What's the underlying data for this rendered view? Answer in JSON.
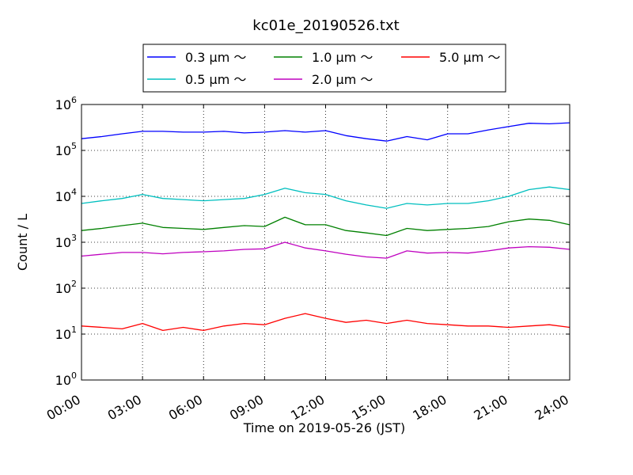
{
  "chart_data": {
    "type": "line",
    "title": "kc01e_20190526.txt",
    "xlabel": "Time on 2019-05-26 (JST)",
    "ylabel": "Count / L",
    "y_scale": "log",
    "ylim": [
      1,
      1000000
    ],
    "xlim": [
      "00:00",
      "24:00"
    ],
    "grid": true,
    "legend_placement": "top-center, above plot",
    "x_ticks": [
      "00:00",
      "03:00",
      "06:00",
      "09:00",
      "12:00",
      "15:00",
      "18:00",
      "21:00",
      "24:00"
    ],
    "y_ticks": [
      {
        "base": "10",
        "exp": "0"
      },
      {
        "base": "10",
        "exp": "1"
      },
      {
        "base": "10",
        "exp": "2"
      },
      {
        "base": "10",
        "exp": "3"
      },
      {
        "base": "10",
        "exp": "4"
      },
      {
        "base": "10",
        "exp": "5"
      },
      {
        "base": "10",
        "exp": "6"
      }
    ],
    "x_hours": [
      0,
      1,
      2,
      3,
      4,
      5,
      6,
      7,
      8,
      9,
      10,
      11,
      12,
      13,
      14,
      15,
      16,
      17,
      18,
      19,
      20,
      21,
      22,
      23,
      24
    ],
    "series": [
      {
        "name": "0.3 μm ～",
        "color": "#0000ff",
        "values": [
          180000,
          200000,
          230000,
          260000,
          260000,
          250000,
          250000,
          260000,
          240000,
          250000,
          270000,
          250000,
          270000,
          210000,
          180000,
          160000,
          200000,
          170000,
          230000,
          230000,
          280000,
          330000,
          390000,
          380000,
          400000
        ]
      },
      {
        "name": "0.5 μm ～",
        "color": "#00bfbf",
        "values": [
          7000,
          8000,
          9000,
          11000,
          9000,
          8500,
          8000,
          8500,
          9000,
          11000,
          15000,
          12000,
          11000,
          8000,
          6500,
          5500,
          7000,
          6500,
          7000,
          7000,
          8000,
          10000,
          14000,
          16000,
          14000
        ]
      },
      {
        "name": "1.0 μm ～",
        "color": "#008000",
        "values": [
          1800,
          2000,
          2300,
          2600,
          2100,
          2000,
          1900,
          2100,
          2300,
          2200,
          3500,
          2400,
          2400,
          1800,
          1600,
          1400,
          2000,
          1800,
          1900,
          2000,
          2200,
          2800,
          3200,
          3000,
          2400
        ]
      },
      {
        "name": "2.0 μm ～",
        "color": "#bf00bf",
        "values": [
          500,
          550,
          600,
          600,
          560,
          600,
          620,
          650,
          700,
          720,
          1000,
          750,
          650,
          550,
          480,
          450,
          650,
          580,
          600,
          580,
          650,
          750,
          800,
          780,
          700
        ]
      },
      {
        "name": "5.0 μm ～",
        "color": "#ff0000",
        "values": [
          15,
          14,
          13,
          17,
          12,
          14,
          12,
          15,
          17,
          16,
          22,
          28,
          22,
          18,
          20,
          17,
          20,
          17,
          16,
          15,
          15,
          14,
          15,
          16,
          14
        ]
      }
    ]
  }
}
